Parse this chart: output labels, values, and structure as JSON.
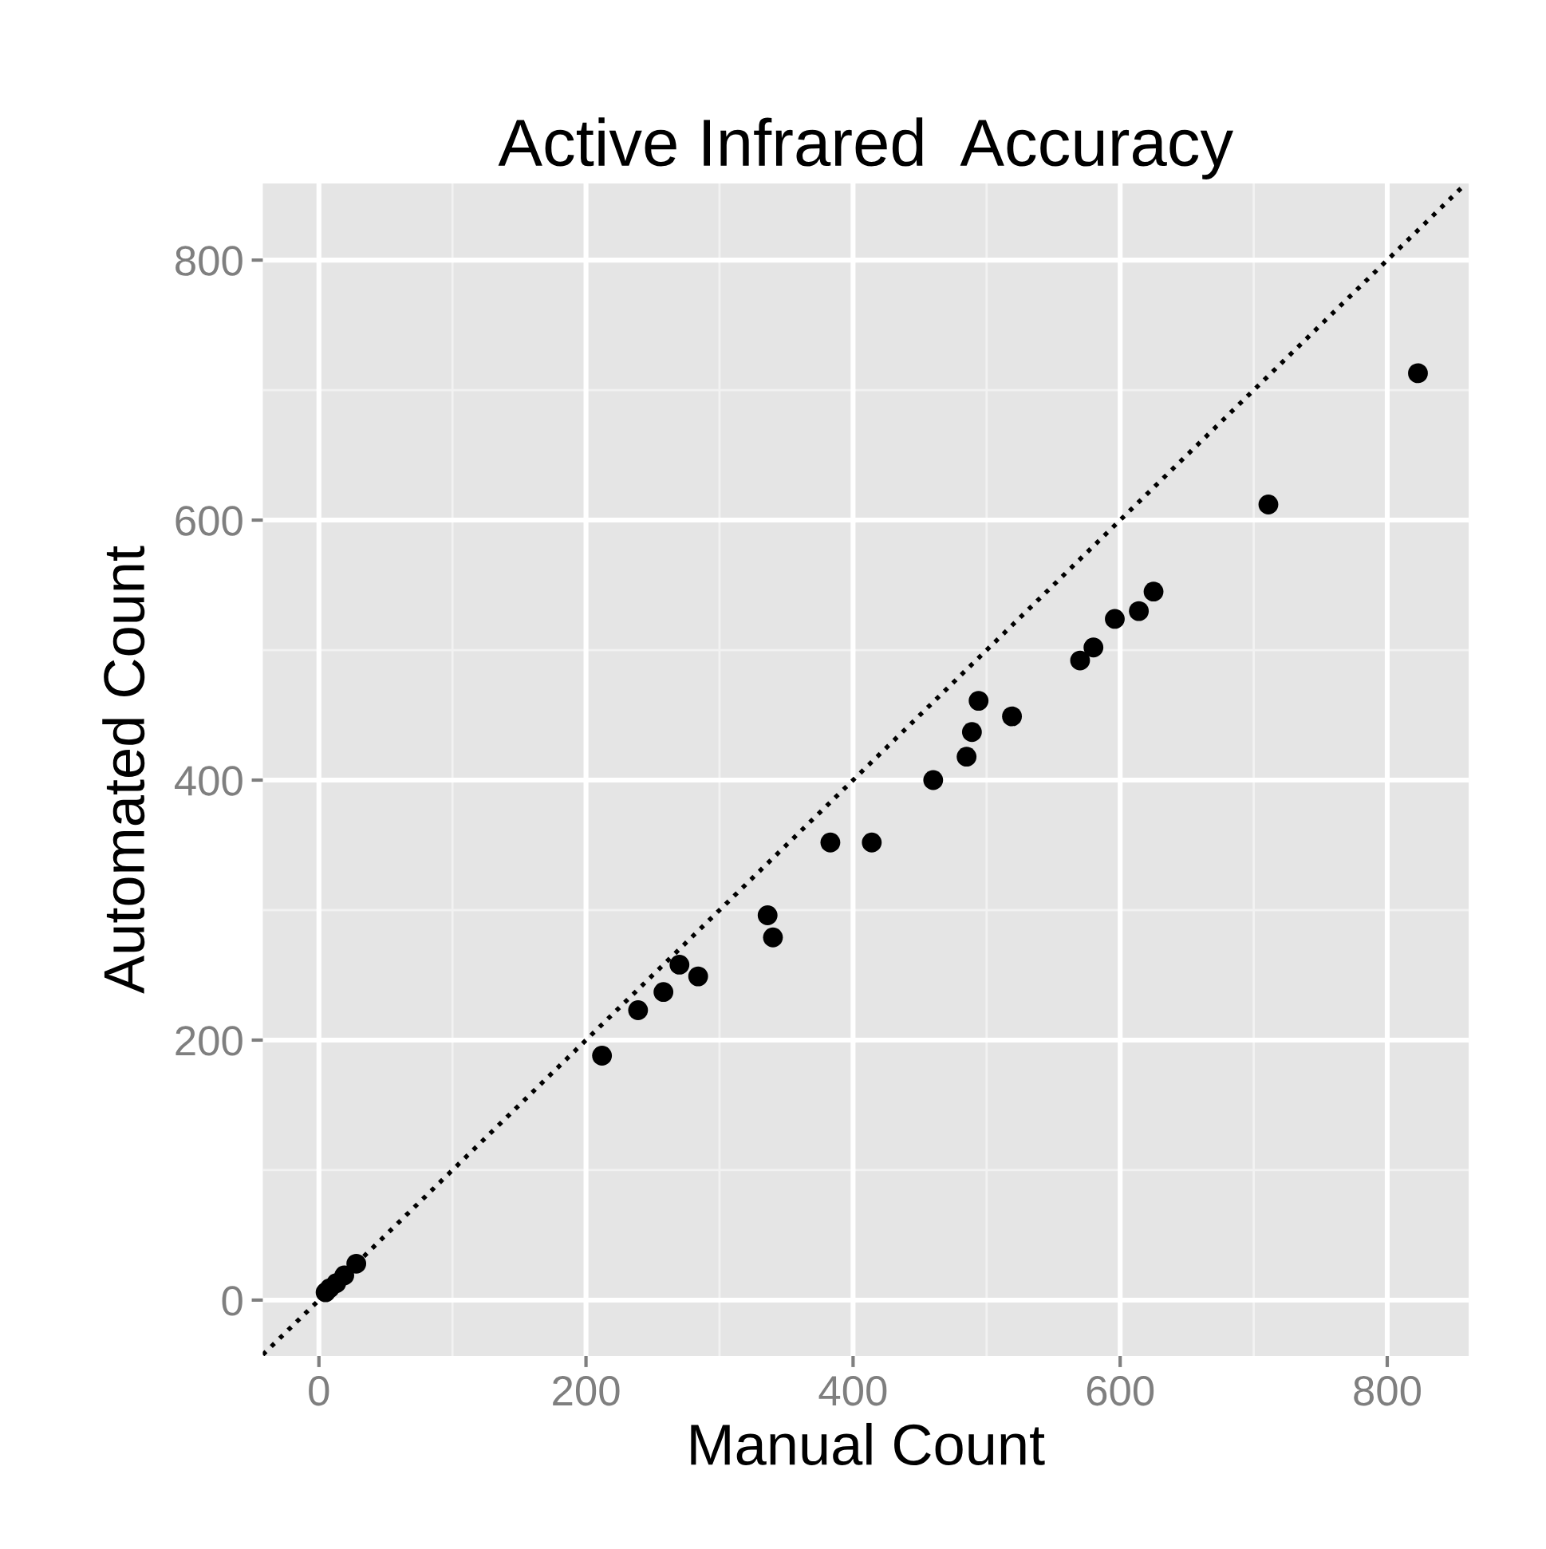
{
  "chart_data": {
    "type": "scatter",
    "title": "Active Infrared  Accuracy",
    "xlabel": "Manual Count",
    "ylabel": "Automated Count",
    "xlim": [
      -42,
      861
    ],
    "ylim": [
      -43,
      859
    ],
    "xticks": [
      0,
      200,
      400,
      600,
      800
    ],
    "yticks": [
      0,
      200,
      400,
      600,
      800
    ],
    "grid": true,
    "series": [
      {
        "color": "#000000",
        "marker": "circle",
        "x": [
          5,
          8,
          13,
          19,
          28,
          212,
          239,
          258,
          270,
          284,
          336,
          340,
          383,
          414,
          460,
          485,
          489,
          494,
          519,
          570,
          580,
          596,
          614,
          625,
          711,
          823
        ],
        "values": [
          6,
          9,
          13,
          19,
          28,
          188,
          223,
          237,
          258,
          249,
          296,
          279,
          352,
          352,
          400,
          418,
          437,
          461,
          449,
          492,
          502,
          524,
          530,
          545,
          612,
          713
        ]
      },
      {
        "type": "line",
        "color": "#000000",
        "line_style": "dotted",
        "marker": "none",
        "x": [
          -42,
          859
        ],
        "values": [
          -42,
          859
        ]
      }
    ]
  }
}
